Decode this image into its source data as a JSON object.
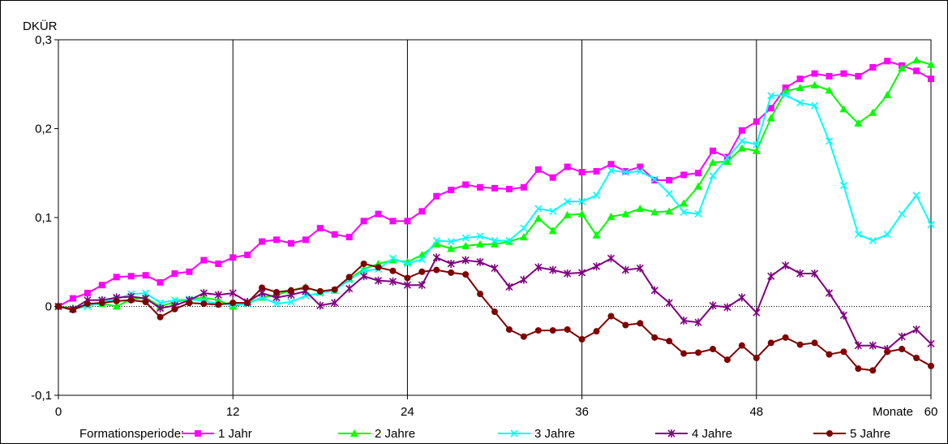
{
  "chart_data": {
    "type": "line",
    "ylabel": "DKÜR",
    "xlabel": "Monate",
    "xlim": [
      0,
      60
    ],
    "ylim": [
      -0.1,
      0.3
    ],
    "x_ticks": [
      0,
      12,
      24,
      36,
      48,
      60
    ],
    "x_tick_labels": [
      "0",
      "12",
      "24",
      "36",
      "48",
      "60"
    ],
    "y_ticks": [
      -0.1,
      0,
      0.1,
      0.2,
      0.3
    ],
    "y_tick_labels": [
      "-0,1",
      "0",
      "0,1",
      "0,2",
      "0,3"
    ],
    "vertical_gridlines_at": [
      12,
      24,
      36,
      48
    ],
    "zero_line": "dotted",
    "legend_title": "Formationsperiode:",
    "legend_position": "bottom",
    "x": [
      0,
      1,
      2,
      3,
      4,
      5,
      6,
      7,
      8,
      9,
      10,
      11,
      12,
      13,
      14,
      15,
      16,
      17,
      18,
      19,
      20,
      21,
      22,
      23,
      24,
      25,
      26,
      27,
      28,
      29,
      30,
      31,
      32,
      33,
      34,
      35,
      36,
      37,
      38,
      39,
      40,
      41,
      42,
      43,
      44,
      45,
      46,
      47,
      48,
      49,
      50,
      51,
      52,
      53,
      54,
      55,
      56,
      57,
      58,
      59,
      60
    ],
    "series": [
      {
        "name": "1 Jahr",
        "color": "#ff00ff",
        "marker": "square",
        "values": [
          0.0,
          0.009,
          0.015,
          0.024,
          0.033,
          0.034,
          0.035,
          0.027,
          0.037,
          0.039,
          0.052,
          0.048,
          0.055,
          0.058,
          0.073,
          0.075,
          0.071,
          0.075,
          0.088,
          0.081,
          0.078,
          0.096,
          0.104,
          0.096,
          0.096,
          0.107,
          0.124,
          0.131,
          0.137,
          0.134,
          0.133,
          0.132,
          0.134,
          0.154,
          0.145,
          0.157,
          0.151,
          0.152,
          0.16,
          0.152,
          0.157,
          0.142,
          0.142,
          0.148,
          0.15,
          0.175,
          0.168,
          0.198,
          0.208,
          0.223,
          0.246,
          0.256,
          0.262,
          0.259,
          0.262,
          0.259,
          0.269,
          0.276,
          0.271,
          0.265,
          0.256
        ]
      },
      {
        "name": "2 Jahre",
        "color": "#00ff00",
        "marker": "triangle",
        "values": [
          0.0,
          -0.002,
          0.002,
          0.003,
          0.0,
          0.008,
          0.01,
          0.0,
          0.005,
          0.008,
          0.01,
          0.007,
          0.0,
          0.004,
          0.01,
          0.013,
          0.018,
          0.022,
          0.016,
          0.018,
          0.031,
          0.042,
          0.048,
          0.052,
          0.05,
          0.058,
          0.07,
          0.065,
          0.068,
          0.07,
          0.07,
          0.073,
          0.078,
          0.099,
          0.085,
          0.103,
          0.104,
          0.08,
          0.101,
          0.104,
          0.11,
          0.106,
          0.107,
          0.116,
          0.135,
          0.162,
          0.163,
          0.178,
          0.175,
          0.212,
          0.242,
          0.246,
          0.249,
          0.243,
          0.222,
          0.206,
          0.218,
          0.238,
          0.268,
          0.277,
          0.272
        ]
      },
      {
        "name": "3 Jahre",
        "color": "#00ffff",
        "marker": "x",
        "values": [
          0.0,
          -0.003,
          0.0,
          0.005,
          0.008,
          0.014,
          0.015,
          0.004,
          0.007,
          0.008,
          0.006,
          0.003,
          0.002,
          0.003,
          0.01,
          0.003,
          0.005,
          0.012,
          0.015,
          0.018,
          0.03,
          0.04,
          0.042,
          0.054,
          0.048,
          0.053,
          0.074,
          0.073,
          0.077,
          0.079,
          0.074,
          0.074,
          0.088,
          0.11,
          0.107,
          0.118,
          0.118,
          0.125,
          0.153,
          0.151,
          0.152,
          0.143,
          0.127,
          0.106,
          0.104,
          0.147,
          0.167,
          0.186,
          0.182,
          0.237,
          0.238,
          0.229,
          0.226,
          0.186,
          0.136,
          0.081,
          0.074,
          0.081,
          0.104,
          0.125,
          0.092
        ]
      },
      {
        "name": "4 Jahre",
        "color": "#800080",
        "marker": "star",
        "values": [
          0.0,
          -0.003,
          0.007,
          0.007,
          0.01,
          0.011,
          0.009,
          -0.002,
          0.001,
          0.007,
          0.015,
          0.013,
          0.015,
          0.005,
          0.015,
          0.01,
          0.013,
          0.017,
          0.001,
          0.004,
          0.02,
          0.034,
          0.029,
          0.028,
          0.024,
          0.024,
          0.055,
          0.048,
          0.052,
          0.05,
          0.043,
          0.022,
          0.03,
          0.044,
          0.041,
          0.037,
          0.038,
          0.045,
          0.054,
          0.041,
          0.043,
          0.018,
          0.004,
          -0.016,
          -0.018,
          0.001,
          -0.001,
          0.01,
          -0.007,
          0.034,
          0.046,
          0.037,
          0.037,
          0.015,
          -0.01,
          -0.044,
          -0.044,
          -0.048,
          -0.034,
          -0.026,
          -0.042
        ]
      },
      {
        "name": "5 Jahre",
        "color": "#800000",
        "marker": "circle",
        "values": [
          0.0,
          -0.004,
          0.003,
          0.004,
          0.006,
          0.007,
          0.005,
          -0.012,
          -0.003,
          0.004,
          0.003,
          0.002,
          0.004,
          0.004,
          0.021,
          0.016,
          0.018,
          0.021,
          0.017,
          0.019,
          0.033,
          0.048,
          0.044,
          0.04,
          0.032,
          0.039,
          0.041,
          0.038,
          0.036,
          0.014,
          -0.006,
          -0.026,
          -0.034,
          -0.027,
          -0.027,
          -0.026,
          -0.037,
          -0.028,
          -0.011,
          -0.021,
          -0.019,
          -0.035,
          -0.039,
          -0.053,
          -0.052,
          -0.048,
          -0.06,
          -0.044,
          -0.058,
          -0.041,
          -0.035,
          -0.043,
          -0.041,
          -0.054,
          -0.051,
          -0.07,
          -0.072,
          -0.051,
          -0.048,
          -0.058,
          -0.067
        ]
      }
    ]
  }
}
